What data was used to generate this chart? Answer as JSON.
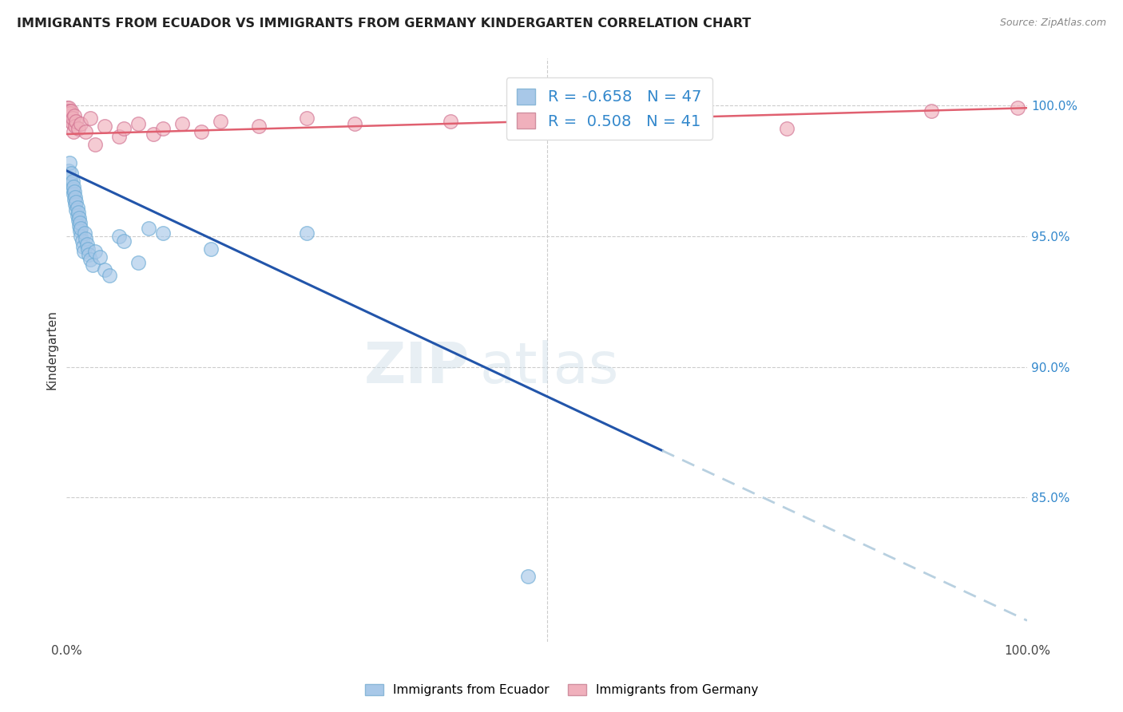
{
  "title": "IMMIGRANTS FROM ECUADOR VS IMMIGRANTS FROM GERMANY KINDERGARTEN CORRELATION CHART",
  "source": "Source: ZipAtlas.com",
  "ylabel": "Kindergarten",
  "watermark": "ZIPatlas",
  "legend_r1": "R = -0.658",
  "legend_n1": "N = 47",
  "legend_r2": "R =  0.508",
  "legend_n2": "N = 41",
  "ecuador_color": "#a8c8e8",
  "germany_color": "#f0b0bc",
  "ecuador_line_color": "#2255aa",
  "germany_line_color": "#e06070",
  "dashed_line_color": "#b8d0e0",
  "right_tick_color": "#3388cc",
  "ytick_right_labels": [
    "100.0%",
    "95.0%",
    "90.0%",
    "85.0%"
  ],
  "ytick_right_values": [
    1.0,
    0.95,
    0.9,
    0.85
  ],
  "xmin": 0.0,
  "xmax": 1.0,
  "ymin": 0.795,
  "ymax": 1.018,
  "ecuador_line_x0": 0.0,
  "ecuador_line_y0": 0.975,
  "ecuador_line_x1": 0.62,
  "ecuador_line_y1": 0.868,
  "ecuador_line_dash_x1": 1.0,
  "ecuador_line_dash_y1": 0.803,
  "germany_line_x0": 0.0,
  "germany_line_y0": 0.989,
  "germany_line_x1": 1.0,
  "germany_line_y1": 0.999,
  "ecuador_points": [
    [
      0.002,
      0.975
    ],
    [
      0.003,
      0.978
    ],
    [
      0.004,
      0.972
    ],
    [
      0.005,
      0.97
    ],
    [
      0.005,
      0.974
    ],
    [
      0.006,
      0.968
    ],
    [
      0.006,
      0.971
    ],
    [
      0.007,
      0.966
    ],
    [
      0.007,
      0.969
    ],
    [
      0.008,
      0.964
    ],
    [
      0.008,
      0.967
    ],
    [
      0.009,
      0.962
    ],
    [
      0.009,
      0.965
    ],
    [
      0.01,
      0.96
    ],
    [
      0.01,
      0.963
    ],
    [
      0.011,
      0.958
    ],
    [
      0.011,
      0.961
    ],
    [
      0.012,
      0.956
    ],
    [
      0.012,
      0.959
    ],
    [
      0.013,
      0.954
    ],
    [
      0.013,
      0.957
    ],
    [
      0.014,
      0.952
    ],
    [
      0.014,
      0.955
    ],
    [
      0.015,
      0.95
    ],
    [
      0.015,
      0.953
    ],
    [
      0.016,
      0.948
    ],
    [
      0.017,
      0.946
    ],
    [
      0.018,
      0.944
    ],
    [
      0.019,
      0.951
    ],
    [
      0.02,
      0.949
    ],
    [
      0.021,
      0.947
    ],
    [
      0.022,
      0.945
    ],
    [
      0.023,
      0.943
    ],
    [
      0.025,
      0.941
    ],
    [
      0.027,
      0.939
    ],
    [
      0.03,
      0.944
    ],
    [
      0.035,
      0.942
    ],
    [
      0.04,
      0.937
    ],
    [
      0.045,
      0.935
    ],
    [
      0.055,
      0.95
    ],
    [
      0.06,
      0.948
    ],
    [
      0.075,
      0.94
    ],
    [
      0.085,
      0.953
    ],
    [
      0.1,
      0.951
    ],
    [
      0.15,
      0.945
    ],
    [
      0.25,
      0.951
    ],
    [
      0.48,
      0.82
    ]
  ],
  "germany_points": [
    [
      0.001,
      0.998
    ],
    [
      0.001,
      0.999
    ],
    [
      0.002,
      0.997
    ],
    [
      0.002,
      0.998
    ],
    [
      0.002,
      0.999
    ],
    [
      0.003,
      0.996
    ],
    [
      0.003,
      0.997
    ],
    [
      0.003,
      0.998
    ],
    [
      0.004,
      0.995
    ],
    [
      0.004,
      0.996
    ],
    [
      0.004,
      0.997
    ],
    [
      0.005,
      0.994
    ],
    [
      0.005,
      0.998
    ],
    [
      0.006,
      0.993
    ],
    [
      0.006,
      0.995
    ],
    [
      0.007,
      0.99
    ],
    [
      0.008,
      0.996
    ],
    [
      0.009,
      0.992
    ],
    [
      0.01,
      0.994
    ],
    [
      0.012,
      0.991
    ],
    [
      0.015,
      0.993
    ],
    [
      0.02,
      0.99
    ],
    [
      0.025,
      0.995
    ],
    [
      0.03,
      0.985
    ],
    [
      0.04,
      0.992
    ],
    [
      0.055,
      0.988
    ],
    [
      0.06,
      0.991
    ],
    [
      0.075,
      0.993
    ],
    [
      0.09,
      0.989
    ],
    [
      0.1,
      0.991
    ],
    [
      0.12,
      0.993
    ],
    [
      0.14,
      0.99
    ],
    [
      0.16,
      0.994
    ],
    [
      0.2,
      0.992
    ],
    [
      0.25,
      0.995
    ],
    [
      0.3,
      0.993
    ],
    [
      0.4,
      0.994
    ],
    [
      0.6,
      0.997
    ],
    [
      0.75,
      0.991
    ],
    [
      0.9,
      0.998
    ],
    [
      0.99,
      0.999
    ]
  ]
}
